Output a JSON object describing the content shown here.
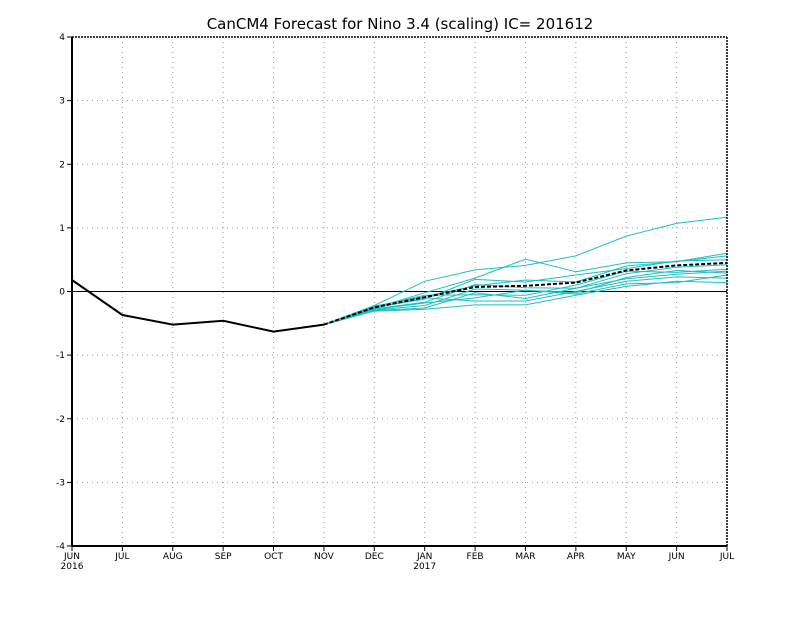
{
  "chart_data": {
    "type": "line",
    "title": "CanCM4 Forecast for Nino 3.4 (scaling)  IC= 201612",
    "xlabel": "",
    "ylabel": "",
    "categories": [
      "JUN",
      "JUL",
      "AUG",
      "SEP",
      "OCT",
      "NOV",
      "DEC",
      "JAN",
      "FEB",
      "MAR",
      "APR",
      "MAY",
      "JUN",
      "JUL"
    ],
    "year_labels": [
      {
        "index": 0,
        "label": "2016"
      },
      {
        "index": 7,
        "label": "2017"
      }
    ],
    "ylim": [
      -4,
      4
    ],
    "yticks": [
      -4,
      -3,
      -2,
      -1,
      0,
      1,
      2,
      3,
      4
    ],
    "grid": true,
    "observed": {
      "color": "#000000",
      "x_index": [
        0,
        1,
        2,
        3,
        4,
        5
      ],
      "values": [
        0.18,
        -0.37,
        -0.52,
        -0.46,
        -0.63,
        -0.52
      ]
    },
    "ensemble_mean": {
      "color": "#000000",
      "style": "dashed",
      "x_index": [
        5,
        6,
        7,
        8,
        9,
        10,
        11,
        12,
        13
      ],
      "values": [
        -0.52,
        -0.25,
        -0.09,
        0.07,
        0.09,
        0.14,
        0.33,
        0.41,
        0.45
      ]
    },
    "ensemble_members": {
      "color": "#1fbfc4",
      "x_index": [
        5,
        6,
        7,
        8,
        9,
        10,
        11,
        12,
        13
      ],
      "series": [
        {
          "values": [
            -0.52,
            -0.22,
            0.16,
            0.34,
            0.41,
            0.56,
            0.87,
            1.07,
            1.17
          ]
        },
        {
          "values": [
            -0.52,
            -0.26,
            -0.02,
            0.21,
            0.51,
            0.31,
            0.45,
            0.47,
            0.6
          ]
        },
        {
          "values": [
            -0.52,
            -0.23,
            -0.08,
            0.09,
            0.18,
            0.15,
            0.4,
            0.47,
            0.56
          ]
        },
        {
          "values": [
            -0.52,
            -0.25,
            -0.12,
            0.19,
            0.15,
            0.26,
            0.36,
            0.48,
            0.5
          ]
        },
        {
          "values": [
            -0.52,
            -0.27,
            -0.17,
            0.11,
            0.06,
            0.05,
            0.28,
            0.38,
            0.42
          ]
        },
        {
          "values": [
            -0.52,
            -0.24,
            -0.06,
            -0.05,
            -0.06,
            0.1,
            0.32,
            0.3,
            0.35
          ]
        },
        {
          "values": [
            -0.52,
            -0.28,
            -0.18,
            -0.1,
            0.02,
            -0.02,
            0.22,
            0.33,
            0.29
          ]
        },
        {
          "values": [
            -0.52,
            -0.3,
            -0.26,
            -0.02,
            -0.11,
            0.05,
            0.2,
            0.27,
            0.32
          ]
        },
        {
          "values": [
            -0.52,
            -0.26,
            -0.1,
            -0.15,
            -0.15,
            0.0,
            0.16,
            0.23,
            0.21
          ]
        },
        {
          "values": [
            -0.52,
            -0.29,
            -0.22,
            0.04,
            0.02,
            -0.04,
            0.12,
            0.14,
            0.26
          ]
        },
        {
          "values": [
            -0.52,
            -0.31,
            -0.28,
            -0.21,
            -0.21,
            -0.06,
            0.08,
            0.16,
            0.14
          ]
        }
      ]
    }
  }
}
